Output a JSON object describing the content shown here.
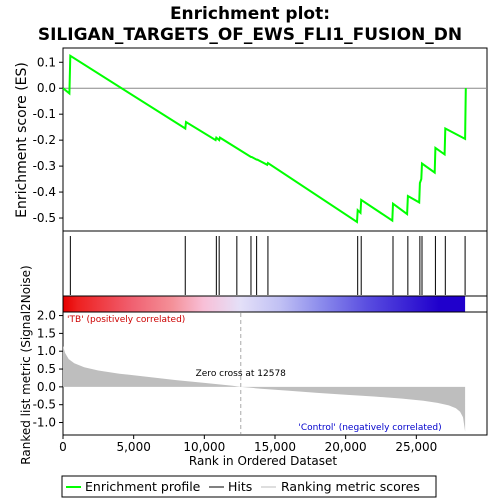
{
  "chart_data": {
    "type": "line",
    "title": "Enrichment plot:\nSILIGAN_TARGETS_OF_EWS_FLI1_FUSION_DN",
    "title_lines": [
      "Enrichment plot:",
      "SILIGAN_TARGETS_OF_EWS_FLI1_FUSION_DN"
    ],
    "es_panel": {
      "ylabel": "Enrichment score (ES)",
      "ylim": [
        -0.55,
        0.155
      ],
      "yticks": [
        0.1,
        0.0,
        -0.1,
        -0.2,
        -0.3,
        -0.4,
        -0.5
      ],
      "ytick_labels": [
        "0.1",
        "0.0",
        "-0.1",
        "-0.2",
        "-0.3",
        "-0.4",
        "-0.5"
      ],
      "line_color": "#00ff00",
      "x": [
        0,
        450,
        520,
        8650,
        8700,
        10800,
        10850,
        11050,
        11100,
        13300,
        13350,
        13700,
        13750,
        14450,
        14500,
        20800,
        20850,
        21050,
        21100,
        23300,
        23350,
        24350,
        24400,
        25200,
        25250,
        25350,
        25400,
        26300,
        26350,
        27000,
        27050,
        28450,
        28500
      ],
      "y": [
        0.0,
        -0.02,
        0.125,
        -0.155,
        -0.13,
        -0.2,
        -0.19,
        -0.2,
        -0.19,
        -0.265,
        -0.265,
        -0.275,
        -0.275,
        -0.295,
        -0.288,
        -0.515,
        -0.47,
        -0.48,
        -0.43,
        -0.51,
        -0.445,
        -0.485,
        -0.415,
        -0.44,
        -0.365,
        -0.35,
        -0.29,
        -0.325,
        -0.23,
        -0.255,
        -0.155,
        -0.195,
        0.0
      ]
    },
    "hits": [
      520,
      8650,
      10850,
      11050,
      12300,
      13300,
      13700,
      14500,
      20850,
      21100,
      23350,
      24400,
      25250,
      25400,
      26350,
      27050,
      28450
    ],
    "rank_band": {
      "stops": [
        {
          "pos": 0.0,
          "color": "#e60000"
        },
        {
          "pos": 0.035,
          "color": "#ee2020"
        },
        {
          "pos": 0.17,
          "color": "#f06070"
        },
        {
          "pos": 0.27,
          "color": "#f49098"
        },
        {
          "pos": 0.35,
          "color": "#f8c0d8"
        },
        {
          "pos": 0.44,
          "color": "#e4e0f8"
        },
        {
          "pos": 0.54,
          "color": "#c0c0f4"
        },
        {
          "pos": 0.64,
          "color": "#8c8cec"
        },
        {
          "pos": 0.755,
          "color": "#5a4ee0"
        },
        {
          "pos": 0.935,
          "color": "#2000cc"
        },
        {
          "pos": 1.0,
          "color": "#2000cc"
        }
      ]
    },
    "metric_panel": {
      "ylabel": "Ranked list metric (Signal2Noise)",
      "ylim": [
        -1.35,
        2.1
      ],
      "yticks": [
        2.0,
        1.5,
        1.0,
        0.5,
        0.0,
        -0.5,
        -1.0
      ],
      "ytick_labels": [
        "2.0",
        "1.5",
        "1.0",
        "0.5",
        "0.0",
        "-0.5",
        "-1.0"
      ],
      "x": [
        0,
        150,
        400,
        800,
        1500,
        2500,
        4000,
        6000,
        8000,
        10000,
        12000,
        12578,
        14000,
        16000,
        18000,
        20000,
        22000,
        24000,
        25500,
        26500,
        27300,
        27800,
        28100,
        28300,
        28450
      ],
      "y": [
        1.15,
        0.95,
        0.78,
        0.66,
        0.55,
        0.46,
        0.37,
        0.28,
        0.19,
        0.11,
        0.03,
        0.0,
        -0.05,
        -0.11,
        -0.17,
        -0.22,
        -0.27,
        -0.33,
        -0.39,
        -0.45,
        -0.52,
        -0.6,
        -0.7,
        -0.85,
        -1.25
      ],
      "fill_color": "#bebebe",
      "pos_label": "'TB' (positively correlated)",
      "neg_label": "'Control' (negatively correlated)",
      "zero_cross_label": "Zero cross at 12578",
      "zero_cross": 12578
    },
    "xlabel": "Rank in Ordered Dataset",
    "xlim": [
      0,
      30000
    ],
    "xticks": [
      0,
      5000,
      10000,
      15000,
      20000,
      25000
    ],
    "xtick_labels": [
      "0",
      "5,000",
      "10,000",
      "15,000",
      "20,000",
      "25,000"
    ],
    "n_ranks": 28450,
    "legend": {
      "position": "bottom",
      "items": [
        {
          "label": "Enrichment profile",
          "color": "#00ff00"
        },
        {
          "label": "Hits",
          "color": "#000000"
        },
        {
          "label": "Ranking metric scores",
          "color": "#bebebe"
        }
      ]
    }
  }
}
